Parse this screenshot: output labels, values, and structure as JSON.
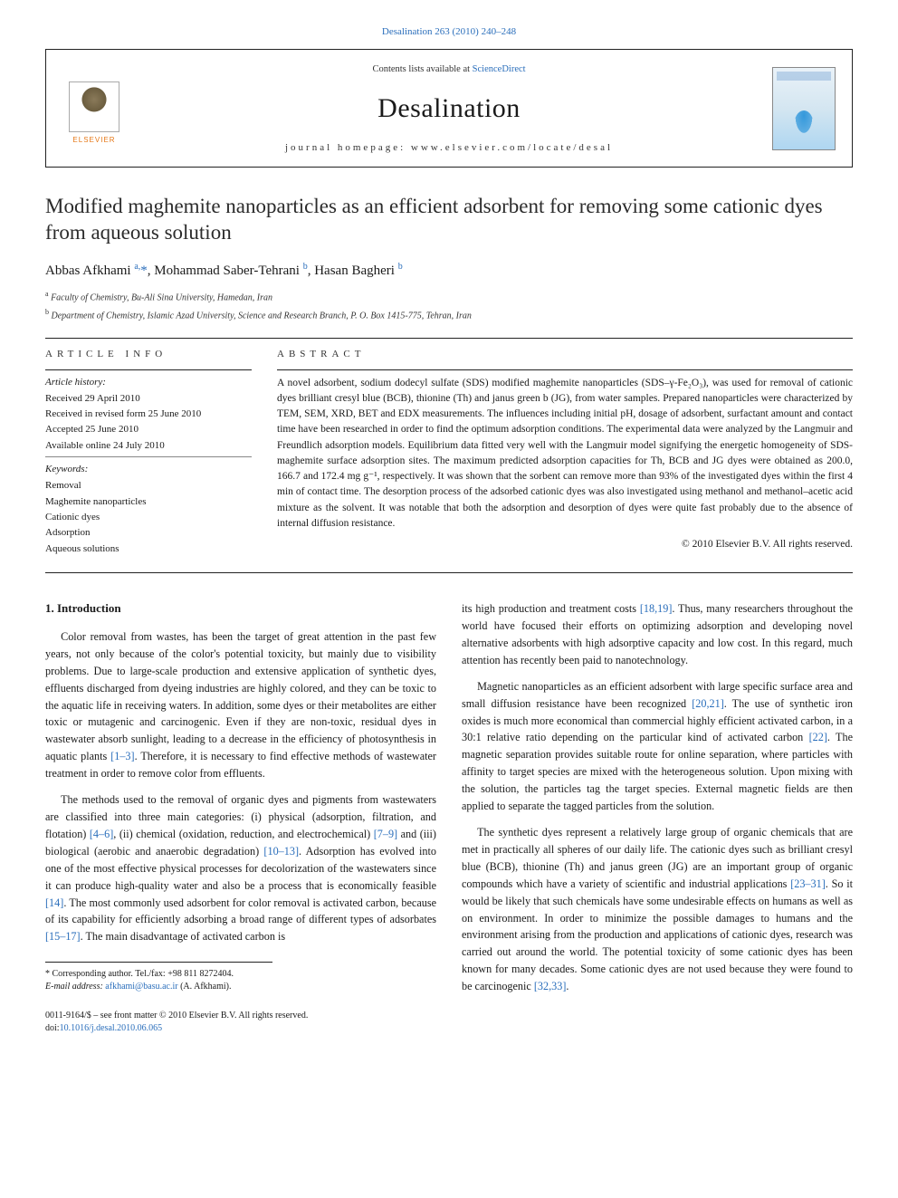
{
  "top_link": "Desalination 263 (2010) 240–248",
  "header": {
    "elsevier_label": "ELSEVIER",
    "contents_prefix": "Contents lists available at ",
    "contents_link": "ScienceDirect",
    "journal_name": "Desalination",
    "homepage_label": "journal homepage: www.elsevier.com/locate/desal"
  },
  "title": "Modified maghemite nanoparticles as an efficient adsorbent for removing some cationic dyes from aqueous solution",
  "authors_html": "Abbas Afkhami <sup>a,</sup><span class='star'>*</span>, Mohammad Saber-Tehrani <sup>b</sup>, Hasan Bagheri <sup>b</sup>",
  "affiliations": [
    "a  Faculty of Chemistry, Bu-Ali Sina University, Hamedan, Iran",
    "b  Department of Chemistry, Islamic Azad University, Science and Research Branch, P. O. Box 1415-775, Tehran, Iran"
  ],
  "article_info": {
    "heading": "ARTICLE INFO",
    "history_label": "Article history:",
    "history": [
      "Received 29 April 2010",
      "Received in revised form 25 June 2010",
      "Accepted 25 June 2010",
      "Available online 24 July 2010"
    ],
    "keywords_label": "Keywords:",
    "keywords": [
      "Removal",
      "Maghemite nanoparticles",
      "Cationic dyes",
      "Adsorption",
      "Aqueous solutions"
    ]
  },
  "abstract": {
    "heading": "ABSTRACT",
    "text": "A novel adsorbent, sodium dodecyl sulfate (SDS) modified maghemite nanoparticles (SDS–γ-Fe₂O₃), was used for removal of cationic dyes brilliant cresyl blue (BCB), thionine (Th) and janus green b (JG), from water samples. Prepared nanoparticles were characterized by TEM, SEM, XRD, BET and EDX measurements. The influences including initial pH, dosage of adsorbent, surfactant amount and contact time have been researched in order to find the optimum adsorption conditions. The experimental data were analyzed by the Langmuir and Freundlich adsorption models. Equilibrium data fitted very well with the Langmuir model signifying the energetic homogeneity of SDS-maghemite surface adsorption sites. The maximum predicted adsorption capacities for Th, BCB and JG dyes were obtained as 200.0, 166.7 and 172.4 mg g⁻¹, respectively. It was shown that the sorbent can remove more than 93% of the investigated dyes within the first 4 min of contact time. The desorption process of the adsorbed cationic dyes was also investigated using methanol and methanol–acetic acid mixture as the solvent. It was notable that both the adsorption and desorption of dyes were quite fast probably due to the absence of internal diffusion resistance.",
    "copyright": "© 2010 Elsevier B.V. All rights reserved."
  },
  "body": {
    "section1_heading": "1. Introduction",
    "col1": [
      {
        "text": "Color removal from wastes, has been the target of great attention in the past few years, not only because of the color's potential toxicity, but mainly due to visibility problems. Due to large-scale production and extensive application of synthetic dyes, effluents discharged from dyeing industries are highly colored, and they can be toxic to the aquatic life in receiving waters. In addition, some dyes or their metabolites are either toxic or mutagenic and carcinogenic. Even if they are non-toxic, residual dyes in wastewater absorb sunlight, leading to a decrease in the efficiency of photosynthesis in aquatic plants ",
        "ref": "[1–3]",
        "tail": ". Therefore, it is necessary to find effective methods of wastewater treatment in order to remove color from effluents."
      },
      {
        "text": "The methods used to the removal of organic dyes and pigments from wastewaters are classified into three main categories: (i) physical (adsorption, filtration, and flotation) ",
        "ref": "[4–6]",
        "tail": ", (ii) chemical (oxidation, reduction, and electrochemical) ",
        "ref2": "[7–9]",
        "tail2": " and (iii) biological (aerobic and anaerobic degradation) ",
        "ref3": "[10–13]",
        "tail3": ". Adsorption has evolved into one of the most effective physical processes for decolorization of the wastewaters since it can produce high-quality water and also be a process that is economically feasible ",
        "ref4": "[14]",
        "tail4": ". The most commonly used adsorbent for color removal is activated carbon, because of its capability for efficiently adsorbing a broad range of different types of adsorbates ",
        "ref5": "[15–17]",
        "tail5": ". The main disadvantage of activated carbon is"
      }
    ],
    "col2": [
      {
        "text": "its high production and treatment costs ",
        "ref": "[18,19]",
        "tail": ". Thus, many researchers throughout the world have focused their efforts on optimizing adsorption and developing novel alternative adsorbents with high adsorptive capacity and low cost. In this regard, much attention has recently been paid to nanotechnology."
      },
      {
        "text": "Magnetic nanoparticles as an efficient adsorbent with large specific surface area and small diffusion resistance have been recognized ",
        "ref": "[20,21]",
        "tail": ". The use of synthetic iron oxides is much more economical than commercial highly efficient activated carbon, in a 30:1 relative ratio depending on the particular kind of activated carbon ",
        "ref2": "[22]",
        "tail2": ". The magnetic separation provides suitable route for online separation, where particles with affinity to target species are mixed with the heterogeneous solution. Upon mixing with the solution, the particles tag the target species. External magnetic fields are then applied to separate the tagged particles from the solution."
      },
      {
        "text": "The synthetic dyes represent a relatively large group of organic chemicals that are met in practically all spheres of our daily life. The cationic dyes such as brilliant cresyl blue (BCB), thionine (Th) and janus green (JG) are an important group of organic compounds which have a variety of scientific and industrial applications ",
        "ref": "[23–31]",
        "tail": ". So it would be likely that such chemicals have some undesirable effects on humans as well as on environment. In order to minimize the possible damages to humans and the environment arising from the production and applications of cationic dyes, research was carried out around the world. The potential toxicity of some cationic dyes has been known for many decades. Some cationic dyes are not used because they were found to be carcinogenic ",
        "ref2": "[32,33]",
        "tail2": "."
      }
    ]
  },
  "footnote": {
    "corr": "* Corresponding author. Tel./fax: +98 811 8272404.",
    "email_label": "E-mail address: ",
    "email": "afkhami@basu.ac.ir",
    "email_tail": " (A. Afkhami)."
  },
  "bottom": {
    "line1": "0011-9164/$ – see front matter © 2010 Elsevier B.V. All rights reserved.",
    "doi_label": "doi:",
    "doi": "10.1016/j.desal.2010.06.065"
  },
  "colors": {
    "link": "#2a6ebb",
    "elsevier_orange": "#e67817",
    "rule": "#222222",
    "text": "#1a1a1a"
  }
}
